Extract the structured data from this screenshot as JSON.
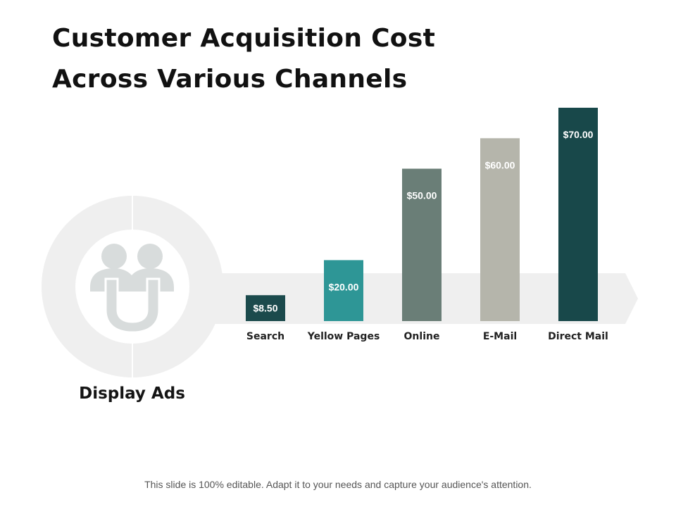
{
  "title_lines": [
    "Customer Acquisition Cost",
    "Across Various Channels"
  ],
  "side_label": "Display Ads",
  "footer": "This slide is 100% editable. Adapt it to your needs and capture your audience's attention.",
  "colors": {
    "background_shape": "#efefef",
    "icon": "#d8dcdc"
  },
  "chart_data": {
    "type": "bar",
    "title": "Customer Acquisition Cost Across Various Channels",
    "categories": [
      "Search",
      "Yellow Pages",
      "Online",
      "E-Mail",
      "Direct Mail"
    ],
    "values": [
      8.5,
      20.0,
      50.0,
      60.0,
      70.0
    ],
    "value_labels": [
      "$8.50",
      "$20.00",
      "$50.00",
      "$60.00",
      "$70.00"
    ],
    "colors": [
      "#1b4a4c",
      "#2e9696",
      "#6a7e77",
      "#b5b5ab",
      "#18484a"
    ],
    "xlabel": "",
    "ylabel": "",
    "ylim": [
      0,
      70
    ],
    "grid": false,
    "legend": "none"
  }
}
